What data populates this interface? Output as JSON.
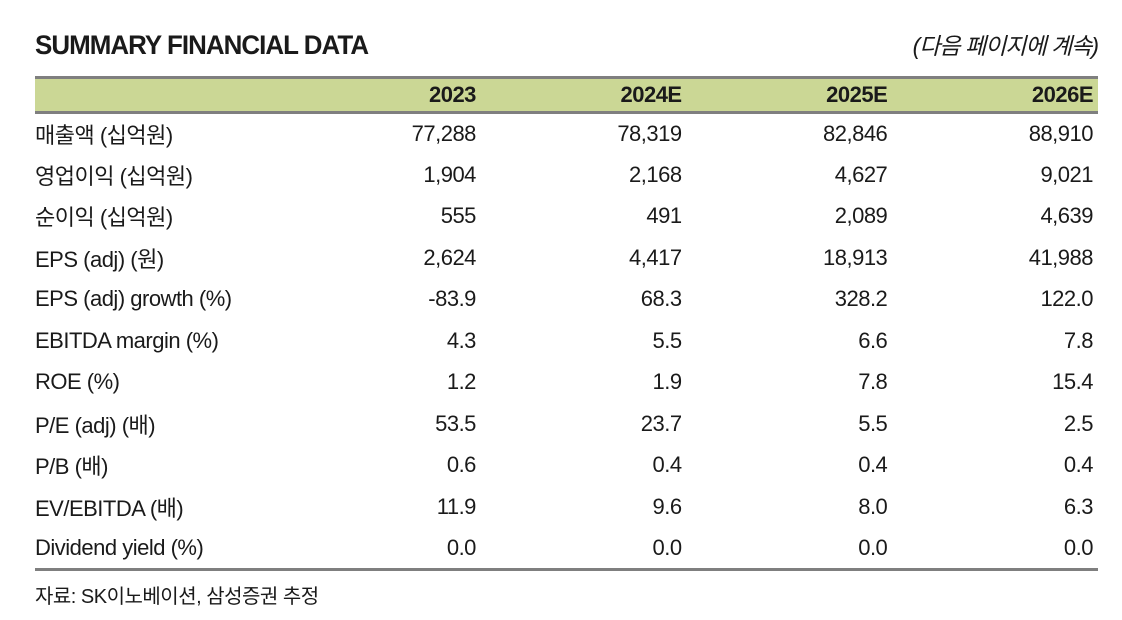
{
  "page": {
    "title": "SUMMARY FINANCIAL DATA",
    "continuation_note": "(다음 페이지에 계속)",
    "source_note": "자료: SK이노베이션, 삼성증권 추정"
  },
  "colors": {
    "header_bg": "#cbd795",
    "border_gray": "#7f7f7f",
    "text": "#1a1a1a"
  },
  "table": {
    "columns": [
      "",
      "2023",
      "2024E",
      "2025E",
      "2026E"
    ],
    "rows": [
      {
        "label": "매출액 (십억원)",
        "values": [
          "77,288",
          "78,319",
          "82,846",
          "88,910"
        ]
      },
      {
        "label": "영업이익 (십억원)",
        "values": [
          "1,904",
          "2,168",
          "4,627",
          "9,021"
        ]
      },
      {
        "label": "순이익 (십억원)",
        "values": [
          "555",
          "491",
          "2,089",
          "4,639"
        ]
      },
      {
        "label": "EPS (adj) (원)",
        "values": [
          "2,624",
          "4,417",
          "18,913",
          "41,988"
        ]
      },
      {
        "label": "EPS (adj) growth (%)",
        "values": [
          "-83.9",
          "68.3",
          "328.2",
          "122.0"
        ]
      },
      {
        "label": "EBITDA margin (%)",
        "values": [
          "4.3",
          "5.5",
          "6.6",
          "7.8"
        ]
      },
      {
        "label": "ROE (%)",
        "values": [
          "1.2",
          "1.9",
          "7.8",
          "15.4"
        ]
      },
      {
        "label": "P/E (adj) (배)",
        "values": [
          "53.5",
          "23.7",
          "5.5",
          "2.5"
        ]
      },
      {
        "label": "P/B (배)",
        "values": [
          "0.6",
          "0.4",
          "0.4",
          "0.4"
        ]
      },
      {
        "label": "EV/EBITDA (배)",
        "values": [
          "11.9",
          "9.6",
          "8.0",
          "6.3"
        ]
      },
      {
        "label": "Dividend yield (%)",
        "values": [
          "0.0",
          "0.0",
          "0.0",
          "0.0"
        ]
      }
    ]
  }
}
